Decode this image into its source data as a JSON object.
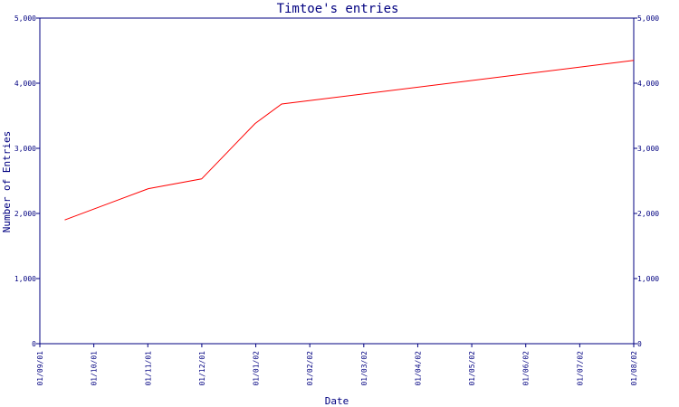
{
  "chart_data": {
    "type": "line",
    "title": "Timtoe's entries",
    "xlabel": "Date",
    "ylabel": "Number of Entries",
    "x_ticks": [
      "01/09/01",
      "01/10/01",
      "01/11/01",
      "01/12/01",
      "01/01/02",
      "01/02/02",
      "01/03/02",
      "01/04/02",
      "01/05/02",
      "01/06/02",
      "01/07/02",
      "01/08/02"
    ],
    "y_ticks": [
      "0",
      "1,000",
      "2,000",
      "3,000",
      "4,000",
      "5,000"
    ],
    "y_ticks_right": [
      "0",
      "1,000",
      "2,000",
      "3,000",
      "4,000",
      "5,000"
    ],
    "ylim": [
      0,
      5000
    ],
    "xlim": [
      "2001-09-01",
      "2002-08-01"
    ],
    "grid": false,
    "legend": "none",
    "series": [
      {
        "color": "#ff0000",
        "x": [
          "2001-09-15",
          "2001-11-01",
          "2001-12-01",
          "2001-12-31",
          "2002-01-15",
          "2002-08-01"
        ],
        "y": [
          1900,
          2380,
          2530,
          3380,
          3680,
          4350
        ]
      }
    ],
    "colors": {
      "axis": "#000080",
      "text": "#000080",
      "line": "#ff0000"
    }
  }
}
